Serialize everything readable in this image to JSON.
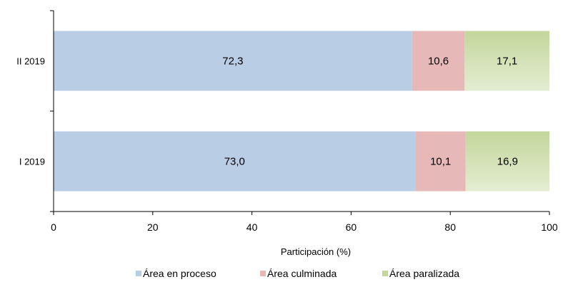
{
  "chart_data": {
    "type": "bar",
    "orientation": "horizontal",
    "stacked": true,
    "categories": [
      "II 2019",
      "I 2019"
    ],
    "series": [
      {
        "name": "Área en proceso",
        "values": [
          72.3,
          73.0
        ],
        "labels": [
          "72,3",
          "73,0"
        ],
        "color": "#b9cde5"
      },
      {
        "name": "Área culminada",
        "values": [
          10.6,
          10.1
        ],
        "labels": [
          "10,6",
          "10,1"
        ],
        "color": "#e6b9b8"
      },
      {
        "name": "Área paralizada",
        "values": [
          17.1,
          16.9
        ],
        "labels": [
          "17,1",
          "16,9"
        ],
        "color": "#c3d69b"
      }
    ],
    "xlabel": "Participación (%)",
    "ylabel": "",
    "xlim": [
      0,
      100
    ],
    "xticks": [
      0,
      20,
      40,
      60,
      80,
      100
    ],
    "grid": false,
    "legend": "bottom"
  }
}
